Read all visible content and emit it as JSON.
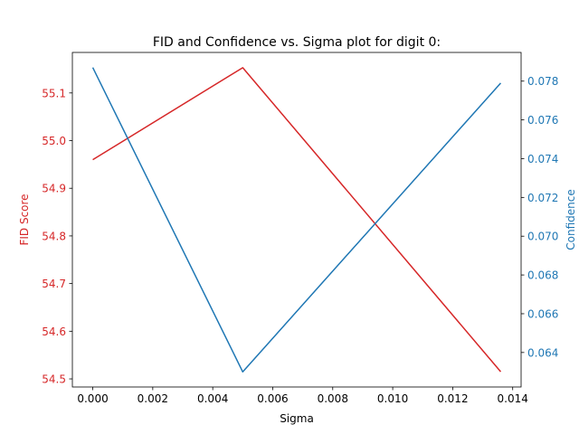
{
  "chart_data": {
    "type": "line",
    "title": "FID and Confidence vs. Sigma plot for digit 0:",
    "xlabel": "Sigma",
    "x": [
      0.0,
      0.005,
      0.0136
    ],
    "xlim": [
      -0.00068,
      0.01428
    ],
    "xticks": [
      0.0,
      0.002,
      0.004,
      0.006,
      0.008,
      0.01,
      0.012,
      0.014
    ],
    "xtick_labels": [
      "0.000",
      "0.002",
      "0.004",
      "0.006",
      "0.008",
      "0.010",
      "0.012",
      "0.014"
    ],
    "y_left": {
      "label": "FID Score",
      "color": "#d62728",
      "values": [
        54.96,
        55.153,
        54.515
      ],
      "ylim": [
        54.483,
        55.185
      ],
      "ticks": [
        54.5,
        54.6,
        54.7,
        54.8,
        54.9,
        55.0,
        55.1
      ],
      "tick_labels": [
        "54.5",
        "54.6",
        "54.7",
        "54.8",
        "54.9",
        "55.0",
        "55.1"
      ]
    },
    "y_right": {
      "label": "Confidence",
      "color": "#1f77b4",
      "values": [
        0.0787,
        0.063,
        0.0779
      ],
      "ylim": [
        0.06222,
        0.07948
      ],
      "ticks": [
        0.064,
        0.066,
        0.068,
        0.07,
        0.072,
        0.074,
        0.076,
        0.078
      ],
      "tick_labels": [
        "0.064",
        "0.066",
        "0.068",
        "0.070",
        "0.072",
        "0.074",
        "0.076",
        "0.078"
      ]
    },
    "grid": false
  }
}
